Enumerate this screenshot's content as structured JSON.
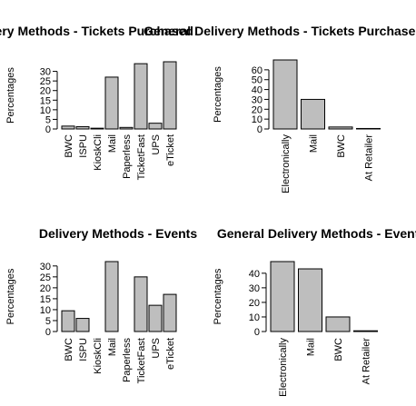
{
  "chart_data": [
    {
      "type": "bar",
      "title": "Delivery Methods - Tickets Purchased",
      "ylabel": "Percentages",
      "categories": [
        "BWC",
        "ISPU",
        "KioskCli",
        "Mail",
        "Paperless",
        "TicketFast",
        "UPS",
        "eTicket"
      ],
      "values": [
        1.5,
        1.2,
        0.4,
        27,
        0.8,
        34,
        3,
        35
      ],
      "yticks": [
        0,
        5,
        10,
        15,
        20,
        25,
        30
      ],
      "ylim": [
        0,
        35
      ]
    },
    {
      "type": "bar",
      "title": "General Delivery Methods - Tickets Purchased",
      "ylabel": "Percentages",
      "categories": [
        "Electronically",
        "Mail",
        "BWC",
        "At Retailer"
      ],
      "values": [
        70,
        30,
        2,
        0.5
      ],
      "yticks": [
        0,
        10,
        20,
        30,
        40,
        50,
        60
      ],
      "ylim": [
        0,
        70
      ]
    },
    {
      "type": "bar",
      "title": "Delivery Methods - Events",
      "ylabel": "Percentages",
      "categories": [
        "BWC",
        "ISPU",
        "KioskCli",
        "Mail",
        "Paperless",
        "TicketFast",
        "UPS",
        "eTicket"
      ],
      "values": [
        9.5,
        6,
        0,
        32,
        0,
        25,
        12,
        17
      ],
      "yticks": [
        0,
        5,
        10,
        15,
        20,
        25,
        30
      ],
      "ylim": [
        0,
        32
      ]
    },
    {
      "type": "bar",
      "title": "General Delivery Methods - Events",
      "ylabel": "Percentages",
      "categories": [
        "Electronically",
        "Mail",
        "BWC",
        "At Retailer"
      ],
      "values": [
        48,
        43,
        10,
        0.5
      ],
      "yticks": [
        0,
        10,
        20,
        30,
        40
      ],
      "ylim": [
        0,
        48
      ]
    }
  ]
}
